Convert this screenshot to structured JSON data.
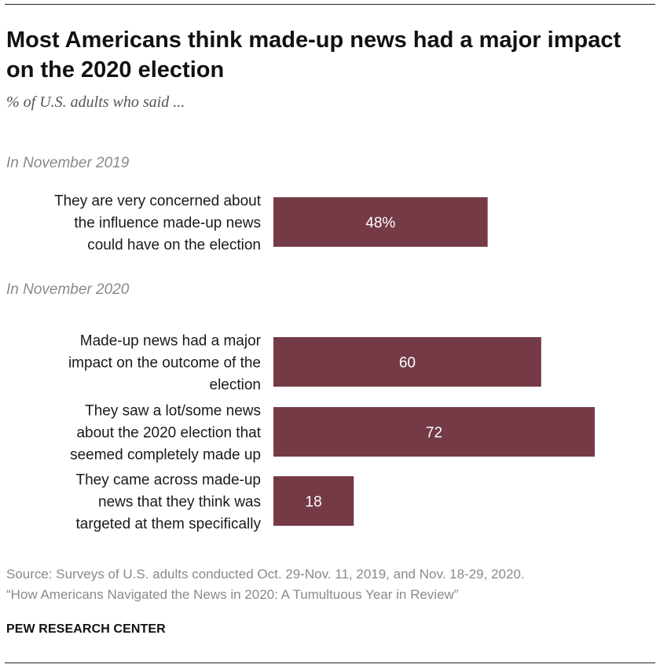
{
  "header": {
    "title": "Most Americans think made-up news had a major impact on the 2020 election",
    "subtitle": "% of U.S. adults who said ..."
  },
  "groups": [
    {
      "label": "In November 2019"
    },
    {
      "label": "In November 2020"
    }
  ],
  "chart_data": {
    "type": "bar",
    "orientation": "horizontal",
    "bar_color": "#743b47",
    "label_color": "#ffffff",
    "xlim": [
      0,
      100
    ],
    "categories": [
      [
        "They are very concerned about",
        "the influence made-up news",
        "could have on the election"
      ],
      [
        "Made-up news had a major",
        "impact on the outcome of the",
        "election"
      ],
      [
        "They saw a lot/some news",
        "about the 2020 election that",
        "seemed completely made up"
      ],
      [
        "They came across made-up",
        "news that they think was",
        "targeted at them specifically"
      ]
    ],
    "values": [
      48,
      60,
      72,
      18
    ],
    "data_labels": [
      "48%",
      "60",
      "72",
      "18"
    ],
    "group_index": [
      0,
      1,
      1,
      1
    ]
  },
  "footer": {
    "source_lines": [
      "Source: Surveys of U.S. adults conducted Oct. 29-Nov. 11, 2019, and Nov. 18-29, 2020.",
      "“How Americans Navigated the News in 2020: A Tumultuous Year in Review”"
    ],
    "brand": "PEW RESEARCH CENTER"
  }
}
